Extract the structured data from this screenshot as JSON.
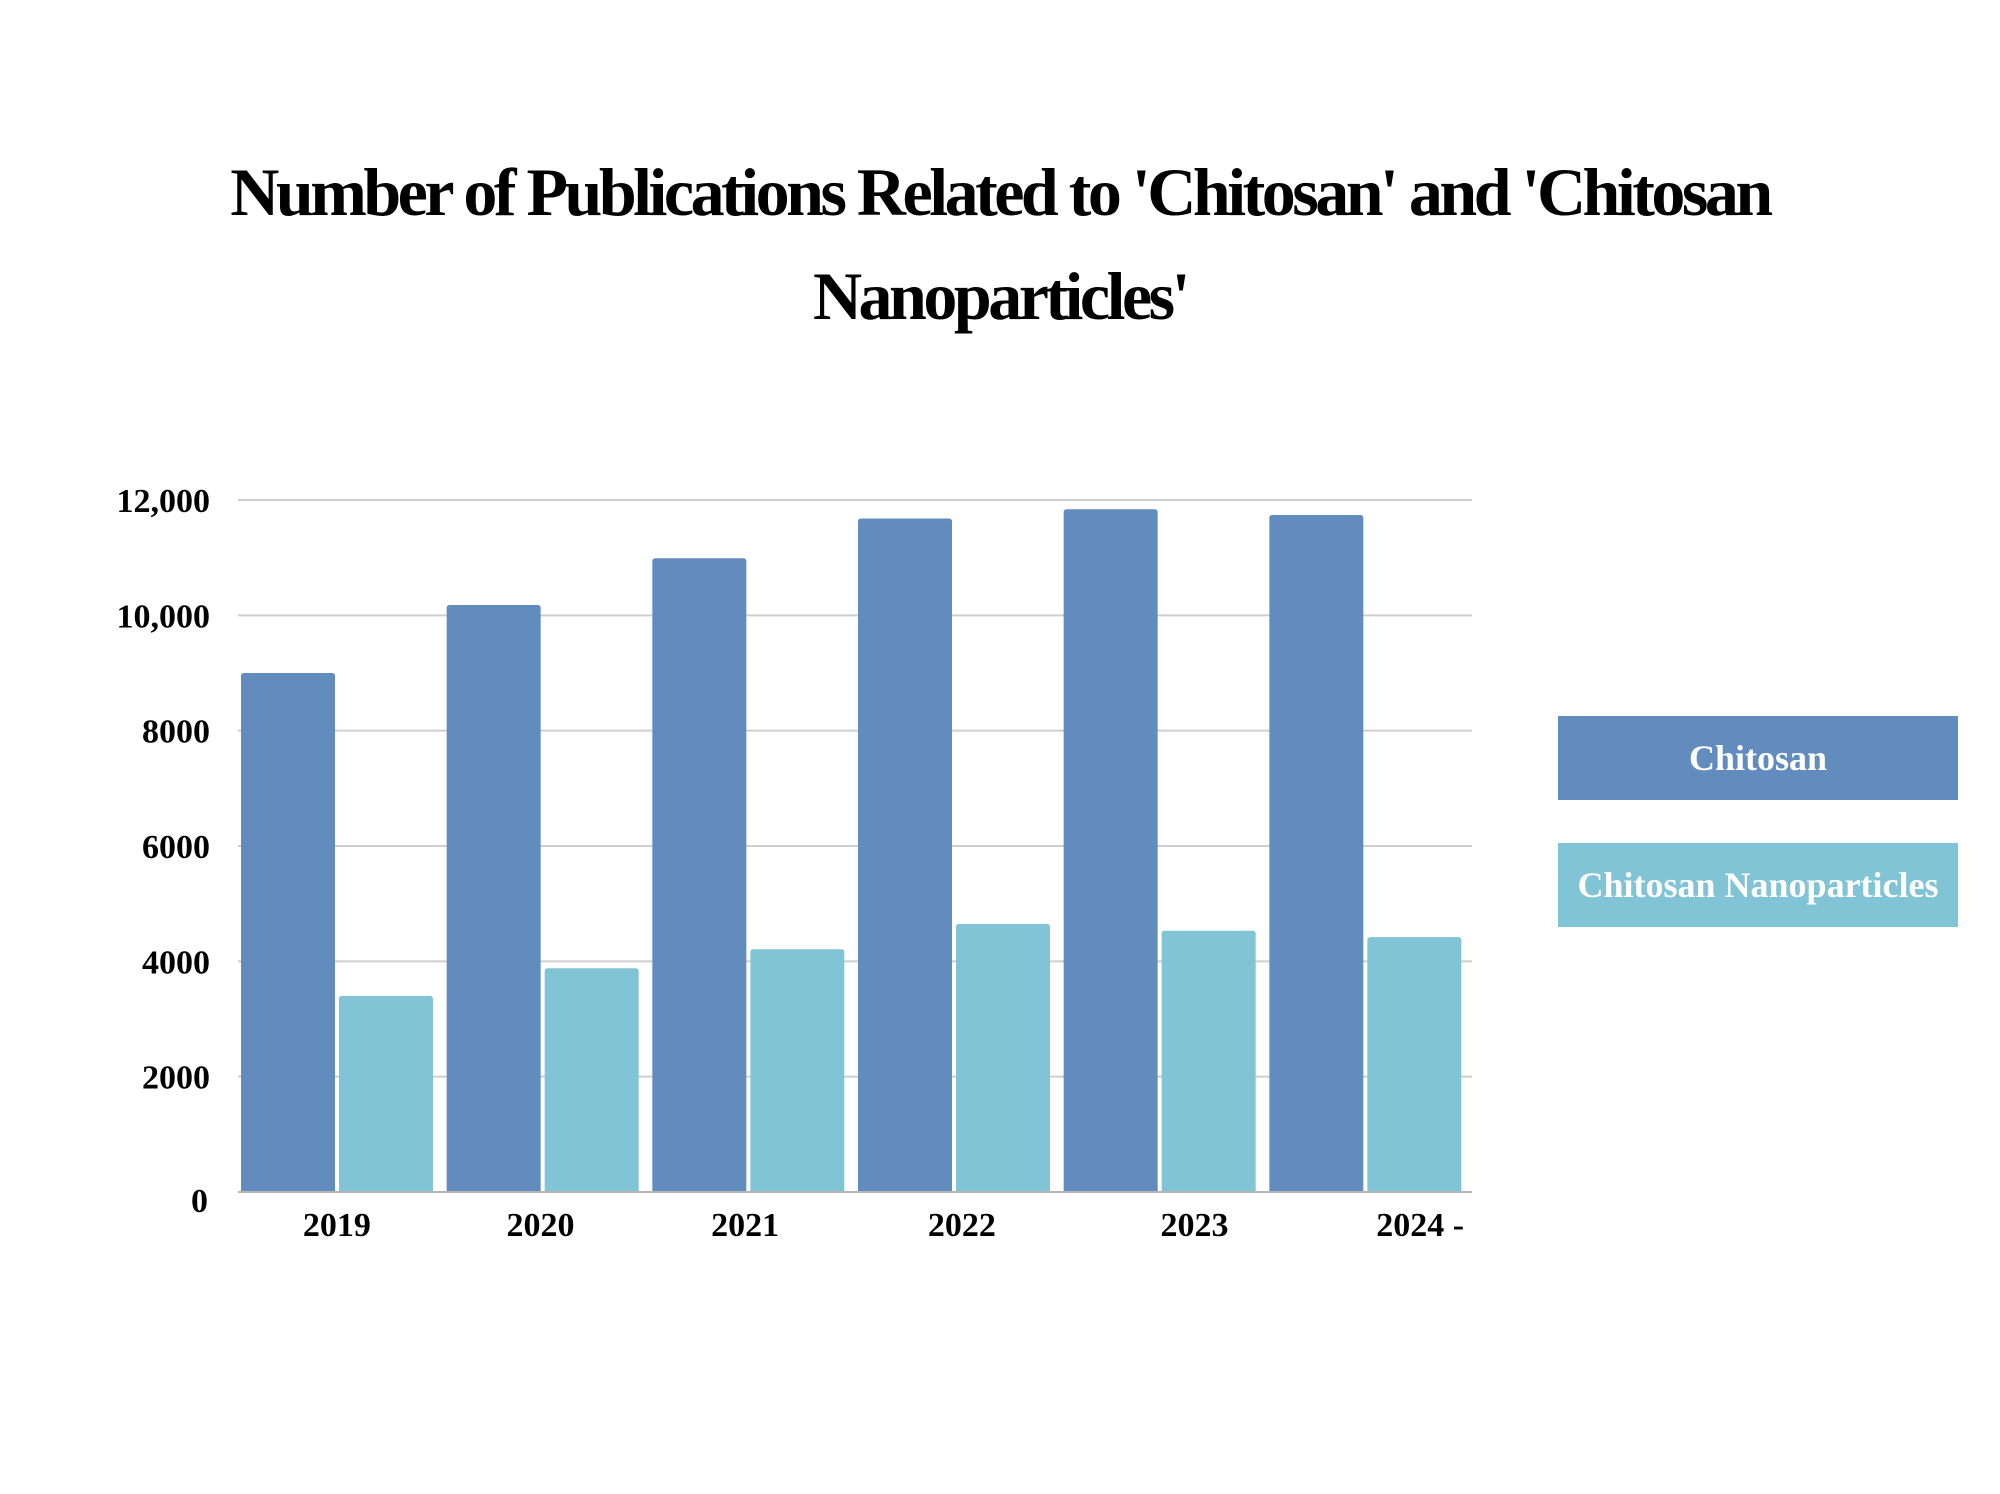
{
  "chart_data": {
    "type": "bar",
    "title": "Number of Publications Related to 'Chitosan' and 'Chitosan Nanoparticles'",
    "xlabel": "",
    "ylabel": "",
    "categories": [
      "2019",
      "2020",
      "2021",
      "2022",
      "2023",
      "2024 -"
    ],
    "series": [
      {
        "name": "Chitosan",
        "color": "#638cbe",
        "values": [
          9000,
          10180,
          10990,
          11680,
          11840,
          11740
        ]
      },
      {
        "name": "Chitosan Nanoparticles",
        "color": "#81c4d6",
        "values": [
          3400,
          3880,
          4210,
          4650,
          4530,
          4420
        ]
      }
    ],
    "ylim": [
      0,
      12000
    ],
    "yticks": [
      0,
      2000,
      4000,
      6000,
      8000,
      10000,
      12000
    ],
    "ytick_labels": [
      "0",
      "2000",
      "4000",
      "6000",
      "8000",
      "10,000",
      "12,000"
    ],
    "grid": true,
    "legend_position": "right"
  }
}
